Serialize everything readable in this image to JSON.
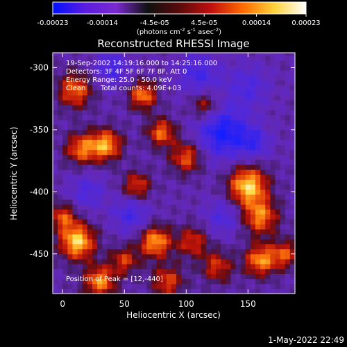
{
  "chart_data": {
    "type": "heatmap",
    "title": "Reconstructed RHESSI Image",
    "xlabel": "Heliocentric X (arcsec)",
    "ylabel": "Heliocentric Y (arcsec)",
    "xlim": [
      -8,
      188
    ],
    "ylim": [
      -482,
      -288
    ],
    "x_ticks": [
      0,
      50,
      100,
      150
    ],
    "y_ticks": [
      -300,
      -350,
      -400,
      -450
    ],
    "grid": false,
    "colorbar": {
      "placement": "top",
      "min": -0.00023,
      "max": 0.00023,
      "ticks": [
        "-0.00023",
        "-0.00014",
        "-4.5e-05",
        "4.5e-05",
        "0.00014",
        "0.00023"
      ],
      "unit_label_parts": [
        "(photons cm",
        "-2",
        " s",
        "-1",
        " asec",
        "-2",
        ")"
      ],
      "colors": [
        "#0010ff",
        "#5a1ce0",
        "#7a2ad0",
        "#101010",
        "#5a0a0a",
        "#c01010",
        "#ff6a00",
        "#ffd23a",
        "#ffffff"
      ]
    },
    "annotations": {
      "time": "19-Sep-2002 14:19:16.000 to 14:25:16.000",
      "detectors": "Detectors: 3F 4F 5F 6F 7F 8F, Att 0",
      "energy": "Energy Range: 25.0 - 50.0 keV",
      "algorithm": "Clean",
      "counts": "Total counts: 4.09E+03",
      "peak": "Position of Peak = [12,-440]"
    },
    "peak": [
      12,
      -440
    ],
    "intensity_peaks": [
      {
        "x": 12,
        "y": -440,
        "amp": 1.0,
        "sigma": 10
      },
      {
        "x": 150,
        "y": -395,
        "amp": 1.0,
        "sigma": 11
      },
      {
        "x": 160,
        "y": -420,
        "amp": 0.75,
        "sigma": 10
      },
      {
        "x": 75,
        "y": -440,
        "amp": 0.85,
        "sigma": 9
      },
      {
        "x": 35,
        "y": -362,
        "amp": 0.85,
        "sigma": 9
      },
      {
        "x": 15,
        "y": -365,
        "amp": 0.7,
        "sigma": 9
      },
      {
        "x": 10,
        "y": -318,
        "amp": 0.7,
        "sigma": 10
      },
      {
        "x": 65,
        "y": -322,
        "amp": 0.75,
        "sigma": 8
      },
      {
        "x": 80,
        "y": -352,
        "amp": 0.7,
        "sigma": 8
      },
      {
        "x": 60,
        "y": -395,
        "amp": 0.6,
        "sigma": 8
      },
      {
        "x": 100,
        "y": -372,
        "amp": 0.65,
        "sigma": 9
      },
      {
        "x": 105,
        "y": -440,
        "amp": 0.55,
        "sigma": 9
      },
      {
        "x": 125,
        "y": -460,
        "amp": 0.55,
        "sigma": 9
      },
      {
        "x": 160,
        "y": -455,
        "amp": 0.8,
        "sigma": 9
      },
      {
        "x": 180,
        "y": -450,
        "amp": 0.6,
        "sigma": 8
      },
      {
        "x": 85,
        "y": -472,
        "amp": 0.6,
        "sigma": 9
      },
      {
        "x": 30,
        "y": -472,
        "amp": 0.8,
        "sigma": 9
      },
      {
        "x": 0,
        "y": -420,
        "amp": 0.6,
        "sigma": 8
      },
      {
        "x": 115,
        "y": -330,
        "amp": 0.5,
        "sigma": 8
      },
      {
        "x": 50,
        "y": -455,
        "amp": 0.55,
        "sigma": 8
      }
    ],
    "negative_regions": [
      {
        "x": 130,
        "y": -352,
        "amp": 1.0,
        "sigma": 14
      },
      {
        "x": 110,
        "y": -305,
        "amp": 0.6,
        "sigma": 12
      },
      {
        "x": 150,
        "y": -315,
        "amp": 0.5,
        "sigma": 12
      },
      {
        "x": 55,
        "y": -418,
        "amp": 0.6,
        "sigma": 10
      },
      {
        "x": 20,
        "y": -400,
        "amp": 0.5,
        "sigma": 10
      },
      {
        "x": 130,
        "y": -420,
        "amp": 0.5,
        "sigma": 10
      },
      {
        "x": 40,
        "y": -300,
        "amp": 0.6,
        "sigma": 10
      },
      {
        "x": 155,
        "y": -360,
        "amp": 0.6,
        "sigma": 9
      }
    ]
  },
  "footer": {
    "date": "1-May-2022 22:49"
  }
}
